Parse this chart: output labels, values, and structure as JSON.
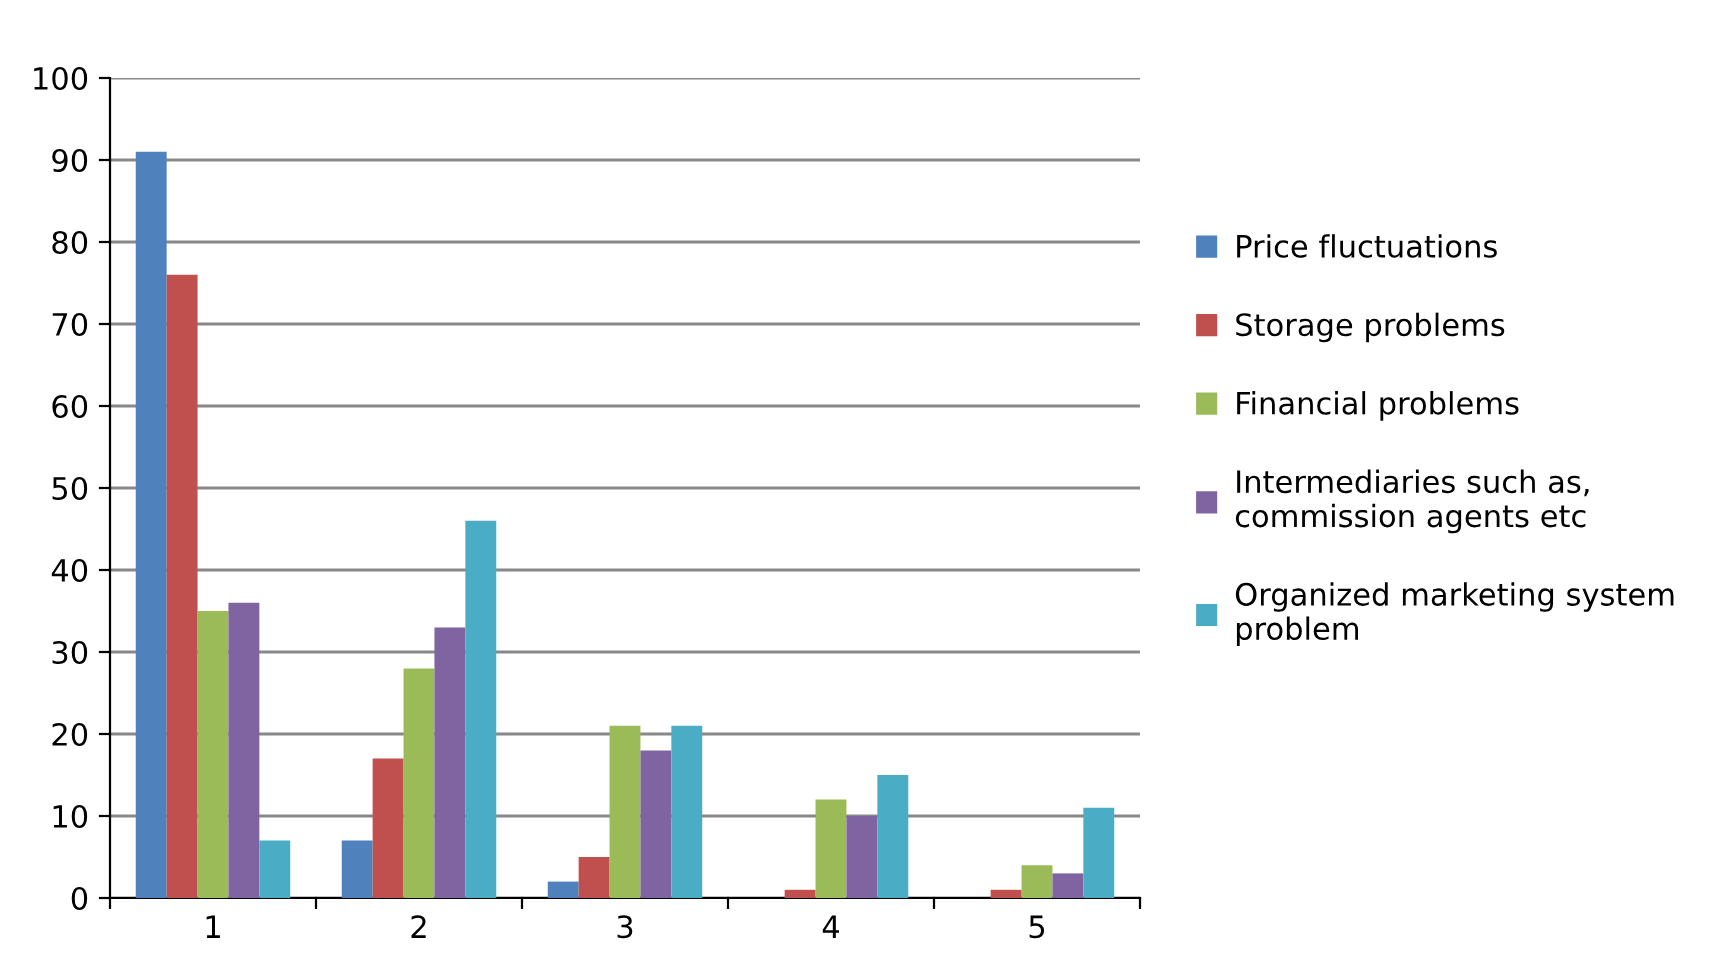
{
  "chart_data": {
    "type": "bar",
    "categories": [
      "1",
      "2",
      "3",
      "4",
      "5"
    ],
    "series": [
      {
        "name": "Price fluctuations",
        "color": "#4f81bd",
        "values": [
          91,
          7,
          2,
          0,
          0
        ]
      },
      {
        "name": "Storage problems",
        "color": "#c0504d",
        "values": [
          76,
          17,
          5,
          1,
          1
        ]
      },
      {
        "name": "Financial problems",
        "color": "#9bbb59",
        "values": [
          35,
          28,
          21,
          12,
          4
        ]
      },
      {
        "name": "Intermediaries such as,\ncommission agents etc",
        "color": "#8064a2",
        "values": [
          36,
          33,
          18,
          10,
          3
        ]
      },
      {
        "name": "Organized marketing system\nproblem",
        "color": "#4bacc6",
        "values": [
          7,
          46,
          21,
          15,
          11
        ]
      }
    ],
    "ylim": [
      0,
      100
    ],
    "yticks": [
      0,
      10,
      20,
      30,
      40,
      50,
      60,
      70,
      80,
      90,
      100
    ],
    "grid": "y",
    "legend": "right"
  }
}
